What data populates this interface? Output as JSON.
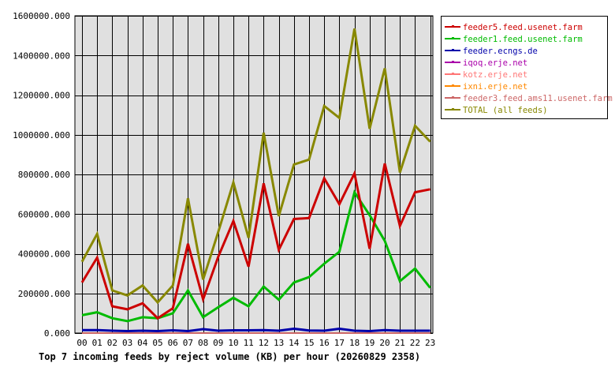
{
  "chart_data": {
    "type": "line",
    "title": "Top 7 incoming feeds by reject volume (KB) per hour (20260829 2358)",
    "xlabel": "",
    "ylabel": "",
    "categories": [
      "00",
      "01",
      "02",
      "03",
      "04",
      "05",
      "06",
      "07",
      "08",
      "09",
      "10",
      "11",
      "12",
      "13",
      "14",
      "15",
      "16",
      "17",
      "18",
      "19",
      "20",
      "21",
      "22",
      "23"
    ],
    "ylim": [
      0,
      1600000
    ],
    "yticks": [
      0,
      200000,
      400000,
      600000,
      800000,
      1000000,
      1200000,
      1400000,
      1600000
    ],
    "ytick_labels": [
      "0.000",
      "200000.000",
      "400000.000",
      "600000.000",
      "800000.000",
      "1000000.000",
      "1200000.000",
      "1400000.000",
      "1600000.000"
    ],
    "grid": true,
    "legend_position": "right",
    "colors": {
      "plot_background": "#e0e0e0",
      "grid": "#000000",
      "frame": "#000000"
    },
    "series": [
      {
        "name": "feeder5.feed.usenet.farm",
        "color": "#cc0000",
        "values": [
          255000,
          380000,
          135000,
          120000,
          150000,
          75000,
          125000,
          450000,
          170000,
          385000,
          565000,
          335000,
          755000,
          420000,
          575000,
          580000,
          780000,
          650000,
          805000,
          425000,
          855000,
          540000,
          710000,
          725000
        ]
      },
      {
        "name": "feeder1.feed.usenet.farm",
        "color": "#00bb00",
        "values": [
          90000,
          105000,
          75000,
          60000,
          80000,
          75000,
          100000,
          215000,
          80000,
          130000,
          178000,
          135000,
          235000,
          168000,
          255000,
          282000,
          350000,
          410000,
          710000,
          595000,
          465000,
          262000,
          325000,
          228000
        ]
      },
      {
        "name": "feeder.ecngs.de",
        "color": "#0000aa",
        "values": [
          15000,
          15000,
          12000,
          10000,
          12000,
          10000,
          14000,
          10000,
          20000,
          12000,
          14000,
          14000,
          15000,
          12000,
          22000,
          13000,
          12000,
          22000,
          12000,
          10000,
          15000,
          12000,
          12000,
          12000
        ]
      },
      {
        "name": "iqoq.erje.net",
        "color": "#aa00aa",
        "values": [
          0,
          0,
          0,
          0,
          0,
          0,
          0,
          0,
          0,
          0,
          0,
          0,
          0,
          0,
          0,
          0,
          0,
          0,
          0,
          0,
          0,
          0,
          0,
          0
        ]
      },
      {
        "name": "kotz.erje.net",
        "color": "#ff7777",
        "values": [
          0,
          0,
          0,
          0,
          0,
          0,
          0,
          0,
          0,
          0,
          0,
          0,
          0,
          0,
          0,
          0,
          0,
          0,
          0,
          0,
          0,
          0,
          0,
          0
        ]
      },
      {
        "name": "ixni.erje.net",
        "color": "#ff8800",
        "values": [
          0,
          0,
          0,
          0,
          0,
          0,
          0,
          0,
          0,
          0,
          0,
          0,
          0,
          0,
          0,
          0,
          0,
          0,
          0,
          0,
          0,
          0,
          0,
          0
        ]
      },
      {
        "name": "feeder3.feed.ams11.usenet.farm",
        "color": "#cc6666",
        "values": [
          0,
          0,
          0,
          0,
          0,
          0,
          0,
          0,
          0,
          0,
          0,
          0,
          0,
          0,
          0,
          0,
          0,
          0,
          0,
          0,
          0,
          0,
          0,
          0
        ]
      },
      {
        "name": "TOTAL (all feeds)",
        "color": "#888800",
        "values": [
          360000,
          500000,
          215000,
          190000,
          240000,
          155000,
          240000,
          680000,
          270000,
          510000,
          760000,
          480000,
          1010000,
          590000,
          850000,
          875000,
          1145000,
          1085000,
          1535000,
          1030000,
          1335000,
          810000,
          1045000,
          965000
        ]
      }
    ]
  }
}
